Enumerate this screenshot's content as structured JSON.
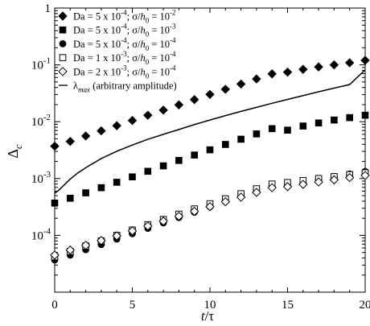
{
  "chart_data": {
    "type": "scatter",
    "xlabel": {
      "main": "t/τ",
      "italic_part": "t",
      "rest": "/τ"
    },
    "ylabel": {
      "main": "Δ",
      "subscript": "c"
    },
    "xlim": [
      0,
      20
    ],
    "ylim": [
      1e-05,
      1
    ],
    "y_scale": "log",
    "grid": false,
    "legend_position": "top-left",
    "x_ticks": [
      "0",
      "5",
      "10",
      "15",
      "20"
    ],
    "y_ticks": [
      {
        "value": 1e-05,
        "label": "",
        "exp": ""
      },
      {
        "value": 0.0001,
        "label": "10",
        "exp": "-4"
      },
      {
        "value": 0.001,
        "label": "10",
        "exp": "-3"
      },
      {
        "value": 0.01,
        "label": "10",
        "exp": "-2"
      },
      {
        "value": 0.1,
        "label": "10",
        "exp": "-1"
      },
      {
        "value": 1,
        "label": "1",
        "exp": ""
      }
    ],
    "series": [
      {
        "name": "Da = 5 x 10^-4; σ/h0 = 10^-2",
        "legend": {
          "a": "Da = 5 x 10",
          "a_sup": "-4",
          "b": "; σ/",
          "b_it": "h",
          "b_sub": "0",
          "c": " = 10",
          "c_sup": "-2"
        },
        "marker": "diamond-filled",
        "x": [
          0,
          1,
          2,
          3,
          4,
          5,
          6,
          7,
          8,
          9,
          10,
          11,
          12,
          13,
          14,
          15,
          16,
          17,
          18,
          19,
          20
        ],
        "values": [
          0.0037,
          0.0045,
          0.0056,
          0.0069,
          0.0085,
          0.0105,
          0.013,
          0.016,
          0.0198,
          0.0245,
          0.0302,
          0.0372,
          0.046,
          0.0565,
          0.0695,
          0.0745,
          0.0835,
          0.092,
          0.1,
          0.109,
          0.12
        ]
      },
      {
        "name": "Da = 5 x 10^-4; σ/h0 = 10^-3",
        "legend": {
          "a": "Da = 5 x 10",
          "a_sup": "-4",
          "b": "; σ/",
          "b_it": "h",
          "b_sub": "0",
          "c": " = 10",
          "c_sup": "-3"
        },
        "marker": "square-filled",
        "x": [
          0,
          1,
          2,
          3,
          4,
          5,
          6,
          7,
          8,
          9,
          10,
          11,
          12,
          13,
          14,
          15,
          16,
          17,
          18,
          19,
          20
        ],
        "values": [
          0.00037,
          0.00045,
          0.00056,
          0.00069,
          0.00086,
          0.00107,
          0.00134,
          0.00167,
          0.00208,
          0.00259,
          0.0032,
          0.00398,
          0.00492,
          0.0061,
          0.00755,
          0.0071,
          0.0084,
          0.0095,
          0.0107,
          0.0118,
          0.013
        ]
      },
      {
        "name": "Da = 5 x 10^-4; σ/h0 = 10^-4",
        "legend": {
          "a": "Da = 5 x 10",
          "a_sup": "-4",
          "b": "; σ/",
          "b_it": "h",
          "b_sub": "0",
          "c": " = 10",
          "c_sup": "-4"
        },
        "marker": "circle-filled",
        "x": [
          0,
          1,
          2,
          3,
          4,
          5,
          6,
          7,
          8,
          9,
          10,
          11,
          12,
          13,
          14,
          15,
          16,
          17,
          18,
          19,
          20
        ],
        "values": [
          3.7e-05,
          4.5e-05,
          5.6e-05,
          6.9e-05,
          8.6e-05,
          0.000107,
          0.000133,
          0.000166,
          0.000206,
          0.000256,
          0.00032,
          0.000395,
          0.00049,
          0.00061,
          0.000755,
          0.00075,
          0.00085,
          0.00096,
          0.00108,
          0.0012,
          0.00133
        ]
      },
      {
        "name": "Da = 1 x 10^-3; σ/h0 = 10^-4",
        "legend": {
          "a": "Da = 1 x 10",
          "a_sup": "-3",
          "b": "; σ/",
          "b_it": "h",
          "b_sub": "0",
          "c": " = 10",
          "c_sup": "-4"
        },
        "marker": "square-open",
        "x": [
          0,
          1,
          2,
          3,
          4,
          5,
          6,
          7,
          8,
          9,
          10,
          11,
          12,
          13,
          14,
          15,
          16,
          17,
          18,
          19,
          20
        ],
        "values": [
          4.2e-05,
          5.2e-05,
          6.5e-05,
          8e-05,
          0.0001,
          0.000124,
          0.000154,
          0.00019,
          0.000236,
          0.000292,
          0.00036,
          0.00044,
          0.00054,
          0.00066,
          0.0008,
          0.00085,
          0.00092,
          0.001,
          0.00108,
          0.00117,
          0.00126
        ]
      },
      {
        "name": "Da = 2 x 10^-3; σ/h0 = 10^-4",
        "legend": {
          "a": "Da = 2 x 10",
          "a_sup": "-3",
          "b": "; σ/",
          "b_it": "h",
          "b_sub": "0",
          "c": " = 10",
          "c_sup": "-4"
        },
        "marker": "diamond-open",
        "x": [
          0,
          1,
          2,
          3,
          4,
          5,
          6,
          7,
          8,
          9,
          10,
          11,
          12,
          13,
          14,
          15,
          16,
          17,
          18,
          19,
          20
        ],
        "values": [
          4.5e-05,
          5.5e-05,
          6.7e-05,
          8.1e-05,
          9.8e-05,
          0.00012,
          0.000146,
          0.000178,
          0.000217,
          0.000265,
          0.00032,
          0.00039,
          0.00047,
          0.00057,
          0.00069,
          0.00072,
          0.00079,
          0.00087,
          0.00095,
          0.00104,
          0.00113
        ]
      },
      {
        "name": "λmax (arbitrary amplitude)",
        "legend": {
          "a": "",
          "lam": "λ",
          "lam_sub": "max",
          "rest": " (arbitrary amplitude)"
        },
        "marker": "line",
        "x": [
          0,
          0.25,
          0.5,
          1,
          1.5,
          2,
          3,
          4,
          5,
          6,
          7,
          8,
          9,
          10,
          11,
          12,
          13,
          14,
          15,
          16,
          17,
          18,
          19,
          20
        ],
        "values": [
          0.00055,
          0.00062,
          0.00072,
          0.00098,
          0.00126,
          0.00155,
          0.00225,
          0.00302,
          0.00388,
          0.0049,
          0.006,
          0.0073,
          0.0089,
          0.0107,
          0.0128,
          0.0152,
          0.0179,
          0.0211,
          0.0247,
          0.0288,
          0.0336,
          0.039,
          0.0451,
          0.0818
        ]
      }
    ]
  }
}
